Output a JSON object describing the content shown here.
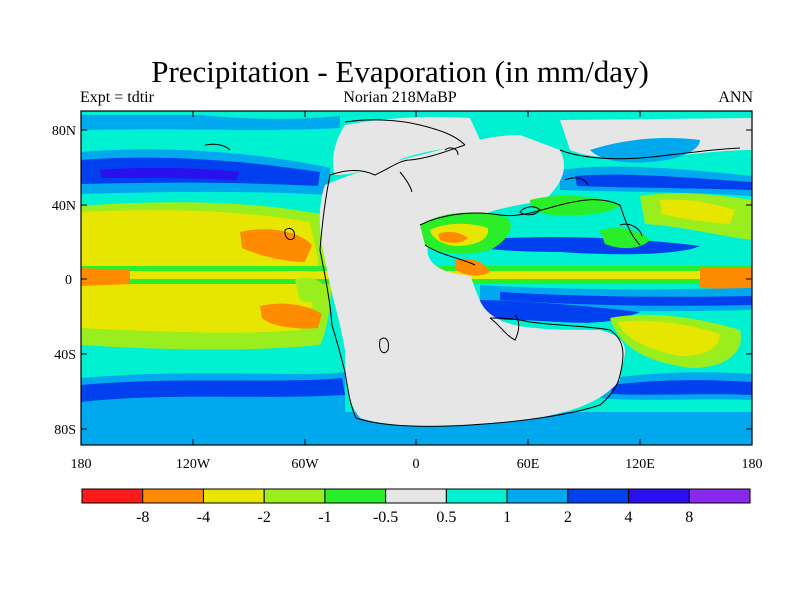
{
  "title": "Precipitation - Evaporation (in mm/day)",
  "subtitle_left": "Expt = tdtir",
  "subtitle_center": "Norian   218MaBP",
  "subtitle_right": "ANN",
  "lat_labels": [
    "80N",
    "40N",
    "0",
    "40S",
    "80S"
  ],
  "lon_labels": [
    "180",
    "120W",
    "60W",
    "0",
    "60E",
    "120E",
    "180"
  ],
  "colorbar": {
    "colors": [
      "#ff1a1a",
      "#ff8c00",
      "#e6e600",
      "#9aee1e",
      "#2aee2a",
      "#e6e6e6",
      "#00f0d2",
      "#00a8ee",
      "#0040ee",
      "#2a10ee",
      "#8a28ee"
    ],
    "labels": [
      "-8",
      "-4",
      "-2",
      "-1",
      "-0.5",
      "0.5",
      "1",
      "2",
      "4",
      "8"
    ]
  }
}
